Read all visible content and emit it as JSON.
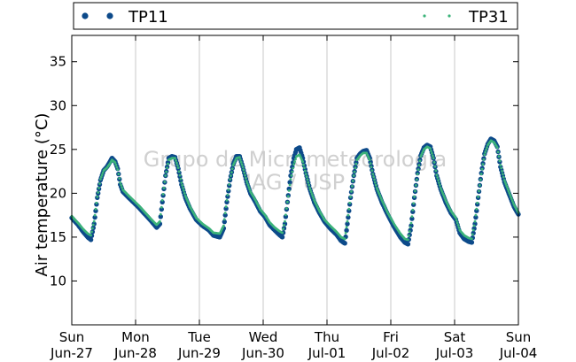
{
  "chart_data": {
    "type": "scatter",
    "title": "",
    "ylabel": "Air temperature (°C)",
    "xlabel": "",
    "ylim": [
      5,
      38
    ],
    "xlim": [
      0,
      7
    ],
    "y_ticks": [
      10,
      15,
      20,
      25,
      30,
      35
    ],
    "x_ticks": [
      {
        "x": 0,
        "line1": "Sun",
        "line2": "Jun-27"
      },
      {
        "x": 1,
        "line1": "Mon",
        "line2": "Jun-28"
      },
      {
        "x": 2,
        "line1": "Tue",
        "line2": "Jun-29"
      },
      {
        "x": 3,
        "line1": "Wed",
        "line2": "Jun-30"
      },
      {
        "x": 4,
        "line1": "Thu",
        "line2": "Jul-01"
      },
      {
        "x": 5,
        "line1": "Fri",
        "line2": "Jul-02"
      },
      {
        "x": 6,
        "line1": "Sat",
        "line2": "Jul-03"
      },
      {
        "x": 7,
        "line1": "Sun",
        "line2": "Jul-04"
      }
    ],
    "grid": "vertical",
    "legend_position": "top",
    "watermark": [
      "Grupo de Micrometeorologia",
      "IAG / USP"
    ],
    "series": [
      {
        "name": "TP11",
        "color": "#0d4a8a",
        "marker": "dot-large",
        "points": [
          [
            0.0,
            17.2
          ],
          [
            0.1,
            16.4
          ],
          [
            0.18,
            15.6
          ],
          [
            0.25,
            15.0
          ],
          [
            0.3,
            14.7
          ],
          [
            0.35,
            16.5
          ],
          [
            0.4,
            19.5
          ],
          [
            0.45,
            21.5
          ],
          [
            0.5,
            22.6
          ],
          [
            0.55,
            23.0
          ],
          [
            0.6,
            23.6
          ],
          [
            0.63,
            24.0
          ],
          [
            0.68,
            23.6
          ],
          [
            0.72,
            22.8
          ],
          [
            0.76,
            21.0
          ],
          [
            0.8,
            20.2
          ],
          [
            0.88,
            19.6
          ],
          [
            0.95,
            19.1
          ],
          [
            1.05,
            18.4
          ],
          [
            1.15,
            17.6
          ],
          [
            1.25,
            16.8
          ],
          [
            1.33,
            16.1
          ],
          [
            1.38,
            16.5
          ],
          [
            1.42,
            19.0
          ],
          [
            1.47,
            22.0
          ],
          [
            1.52,
            24.0
          ],
          [
            1.57,
            24.2
          ],
          [
            1.62,
            24.1
          ],
          [
            1.67,
            22.8
          ],
          [
            1.72,
            21.0
          ],
          [
            1.78,
            19.5
          ],
          [
            1.85,
            18.3
          ],
          [
            1.95,
            17.0
          ],
          [
            2.05,
            16.3
          ],
          [
            2.15,
            15.8
          ],
          [
            2.22,
            15.2
          ],
          [
            2.32,
            15.0
          ],
          [
            2.38,
            16.0
          ],
          [
            2.43,
            19.0
          ],
          [
            2.48,
            21.5
          ],
          [
            2.53,
            23.3
          ],
          [
            2.58,
            24.2
          ],
          [
            2.63,
            24.2
          ],
          [
            2.68,
            23.0
          ],
          [
            2.74,
            21.3
          ],
          [
            2.8,
            20.0
          ],
          [
            2.88,
            19.0
          ],
          [
            2.95,
            18.0
          ],
          [
            3.03,
            17.3
          ],
          [
            3.1,
            16.4
          ],
          [
            3.18,
            15.8
          ],
          [
            3.25,
            15.3
          ],
          [
            3.3,
            15.0
          ],
          [
            3.34,
            16.5
          ],
          [
            3.38,
            19.0
          ],
          [
            3.43,
            22.0
          ],
          [
            3.48,
            24.0
          ],
          [
            3.52,
            25.0
          ],
          [
            3.57,
            25.2
          ],
          [
            3.62,
            24.0
          ],
          [
            3.67,
            22.3
          ],
          [
            3.73,
            20.5
          ],
          [
            3.8,
            19.0
          ],
          [
            3.88,
            17.8
          ],
          [
            3.96,
            16.8
          ],
          [
            4.05,
            16.0
          ],
          [
            4.15,
            15.3
          ],
          [
            4.22,
            14.6
          ],
          [
            4.28,
            14.3
          ],
          [
            4.32,
            16.5
          ],
          [
            4.37,
            19.5
          ],
          [
            4.42,
            22.0
          ],
          [
            4.47,
            24.0
          ],
          [
            4.52,
            24.5
          ],
          [
            4.57,
            24.8
          ],
          [
            4.62,
            24.9
          ],
          [
            4.67,
            24.0
          ],
          [
            4.72,
            22.2
          ],
          [
            4.78,
            20.5
          ],
          [
            4.86,
            19.0
          ],
          [
            4.95,
            17.6
          ],
          [
            5.05,
            16.2
          ],
          [
            5.15,
            15.0
          ],
          [
            5.22,
            14.4
          ],
          [
            5.27,
            14.2
          ],
          [
            5.32,
            16.3
          ],
          [
            5.37,
            19.5
          ],
          [
            5.42,
            22.3
          ],
          [
            5.47,
            24.3
          ],
          [
            5.52,
            25.2
          ],
          [
            5.57,
            25.5
          ],
          [
            5.62,
            25.3
          ],
          [
            5.67,
            24.0
          ],
          [
            5.72,
            22.0
          ],
          [
            5.78,
            20.5
          ],
          [
            5.86,
            19.0
          ],
          [
            5.94,
            17.8
          ],
          [
            6.02,
            17.0
          ],
          [
            6.08,
            15.5
          ],
          [
            6.15,
            14.8
          ],
          [
            6.22,
            14.5
          ],
          [
            6.27,
            14.4
          ],
          [
            6.32,
            16.5
          ],
          [
            6.37,
            19.5
          ],
          [
            6.42,
            22.3
          ],
          [
            6.47,
            24.5
          ],
          [
            6.52,
            25.6
          ],
          [
            6.57,
            26.2
          ],
          [
            6.62,
            26.0
          ],
          [
            6.67,
            25.3
          ],
          [
            6.72,
            23.0
          ],
          [
            6.78,
            21.3
          ],
          [
            6.86,
            19.8
          ],
          [
            6.93,
            18.5
          ],
          [
            7.0,
            17.6
          ]
        ]
      },
      {
        "name": "TP31",
        "color": "#3cb37a",
        "marker": "dot-small",
        "points": [
          [
            0.0,
            17.4
          ],
          [
            0.1,
            16.6
          ],
          [
            0.18,
            15.9
          ],
          [
            0.25,
            15.4
          ],
          [
            0.3,
            15.2
          ],
          [
            0.35,
            16.8
          ],
          [
            0.4,
            19.6
          ],
          [
            0.45,
            21.6
          ],
          [
            0.5,
            22.6
          ],
          [
            0.55,
            22.9
          ],
          [
            0.6,
            23.4
          ],
          [
            0.63,
            23.8
          ],
          [
            0.68,
            23.5
          ],
          [
            0.72,
            22.7
          ],
          [
            0.76,
            21.2
          ],
          [
            0.8,
            20.4
          ],
          [
            0.88,
            19.8
          ],
          [
            0.95,
            19.3
          ],
          [
            1.05,
            18.6
          ],
          [
            1.15,
            17.8
          ],
          [
            1.25,
            17.0
          ],
          [
            1.33,
            16.4
          ],
          [
            1.38,
            16.8
          ],
          [
            1.42,
            19.2
          ],
          [
            1.47,
            22.0
          ],
          [
            1.52,
            23.8
          ],
          [
            1.57,
            24.0
          ],
          [
            1.62,
            24.0
          ],
          [
            1.67,
            22.9
          ],
          [
            1.72,
            21.2
          ],
          [
            1.78,
            19.7
          ],
          [
            1.85,
            18.5
          ],
          [
            1.95,
            17.2
          ],
          [
            2.05,
            16.5
          ],
          [
            2.15,
            16.0
          ],
          [
            2.22,
            15.5
          ],
          [
            2.32,
            15.4
          ],
          [
            2.38,
            16.3
          ],
          [
            2.43,
            19.2
          ],
          [
            2.48,
            21.6
          ],
          [
            2.53,
            23.2
          ],
          [
            2.58,
            24.0
          ],
          [
            2.63,
            24.1
          ],
          [
            2.68,
            23.0
          ],
          [
            2.74,
            21.4
          ],
          [
            2.8,
            20.2
          ],
          [
            2.88,
            19.2
          ],
          [
            2.95,
            18.2
          ],
          [
            3.03,
            17.5
          ],
          [
            3.1,
            16.7
          ],
          [
            3.18,
            16.1
          ],
          [
            3.25,
            15.7
          ],
          [
            3.3,
            15.5
          ],
          [
            3.34,
            16.8
          ],
          [
            3.38,
            19.0
          ],
          [
            3.43,
            21.6
          ],
          [
            3.48,
            23.3
          ],
          [
            3.52,
            24.2
          ],
          [
            3.57,
            24.4
          ],
          [
            3.62,
            23.6
          ],
          [
            3.67,
            22.2
          ],
          [
            3.73,
            20.6
          ],
          [
            3.8,
            19.2
          ],
          [
            3.88,
            18.0
          ],
          [
            3.96,
            17.0
          ],
          [
            4.05,
            16.3
          ],
          [
            4.15,
            15.6
          ],
          [
            4.22,
            15.0
          ],
          [
            4.28,
            14.8
          ],
          [
            4.32,
            16.8
          ],
          [
            4.37,
            19.6
          ],
          [
            4.42,
            22.0
          ],
          [
            4.47,
            23.8
          ],
          [
            4.52,
            24.3
          ],
          [
            4.57,
            24.6
          ],
          [
            4.62,
            24.6
          ],
          [
            4.67,
            23.8
          ],
          [
            4.72,
            22.2
          ],
          [
            4.78,
            20.6
          ],
          [
            4.86,
            19.2
          ],
          [
            4.95,
            17.8
          ],
          [
            5.05,
            16.5
          ],
          [
            5.15,
            15.4
          ],
          [
            5.22,
            14.8
          ],
          [
            5.27,
            14.7
          ],
          [
            5.32,
            16.6
          ],
          [
            5.37,
            19.6
          ],
          [
            5.42,
            22.2
          ],
          [
            5.47,
            24.2
          ],
          [
            5.52,
            25.0
          ],
          [
            5.57,
            25.3
          ],
          [
            5.62,
            25.1
          ],
          [
            5.67,
            24.0
          ],
          [
            5.72,
            22.1
          ],
          [
            5.78,
            20.6
          ],
          [
            5.86,
            19.2
          ],
          [
            5.94,
            18.0
          ],
          [
            6.02,
            17.2
          ],
          [
            6.08,
            15.8
          ],
          [
            6.15,
            15.2
          ],
          [
            6.22,
            14.9
          ],
          [
            6.27,
            14.8
          ],
          [
            6.32,
            16.8
          ],
          [
            6.37,
            19.6
          ],
          [
            6.42,
            22.2
          ],
          [
            6.47,
            24.4
          ],
          [
            6.52,
            25.5
          ],
          [
            6.57,
            26.0
          ],
          [
            6.62,
            25.8
          ],
          [
            6.67,
            25.2
          ],
          [
            6.72,
            23.2
          ],
          [
            6.78,
            21.5
          ],
          [
            6.86,
            20.0
          ],
          [
            6.93,
            18.7
          ],
          [
            7.0,
            17.8
          ]
        ]
      }
    ]
  }
}
